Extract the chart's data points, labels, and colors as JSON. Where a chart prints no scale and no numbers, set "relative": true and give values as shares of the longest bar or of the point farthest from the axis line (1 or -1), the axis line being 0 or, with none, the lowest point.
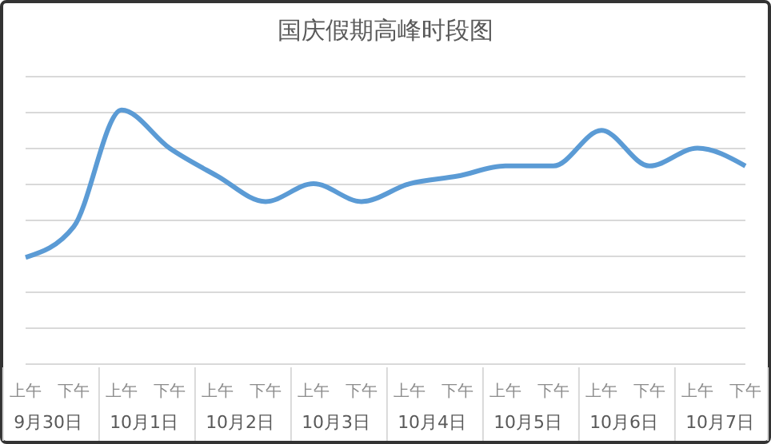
{
  "chart_data": {
    "type": "line",
    "title": "国庆假期高峰时段图",
    "relative": true,
    "grid": "y",
    "marker": "none",
    "line_style": "solid",
    "categories": [
      "上午",
      "下午",
      "上午",
      "下午",
      "上午",
      "下午",
      "上午",
      "下午",
      "上午",
      "下午",
      "上午",
      "下午",
      "上午",
      "下午",
      "上午",
      "下午"
    ],
    "annotations": [
      "9月30日",
      "10月1日",
      "10月2日",
      "10月3日",
      "10月4日",
      "10月5日",
      "10月6日",
      "10月7日"
    ],
    "series": [
      {
        "color": "#5b9bd5",
        "values": [
          0.42,
          0.54,
          1,
          0.85,
          0.74,
          0.64,
          0.71,
          0.64,
          0.71,
          0.74,
          0.78,
          0.78,
          0.92,
          0.78,
          0.85,
          0.78
        ]
      }
    ]
  }
}
